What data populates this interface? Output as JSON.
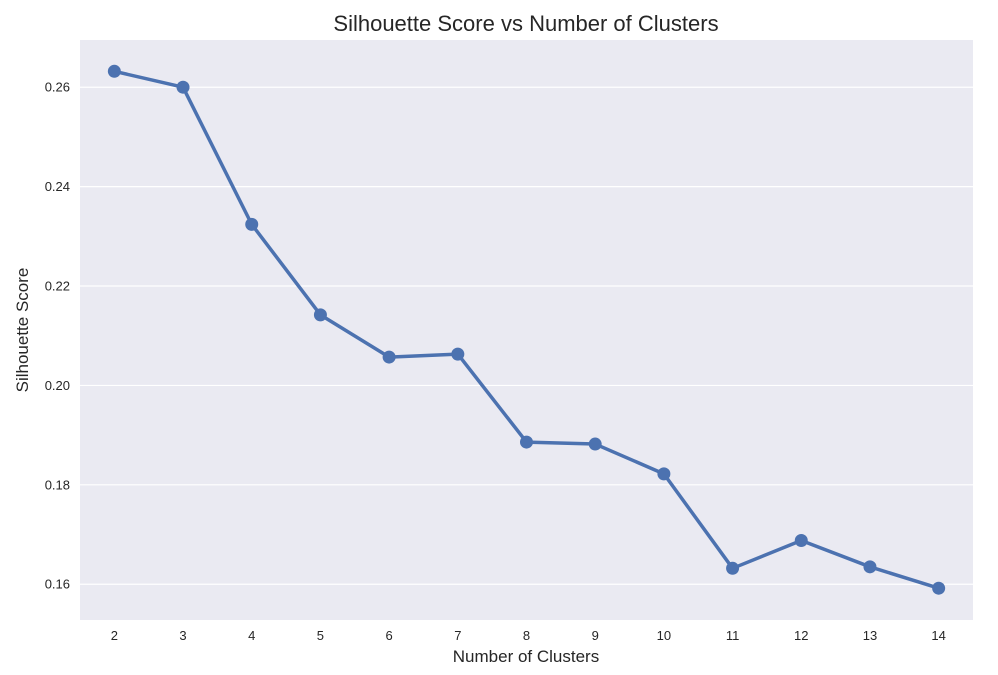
{
  "chart_data": {
    "type": "line",
    "title": "Silhouette Score vs Number of Clusters",
    "xlabel": "Number of Clusters",
    "ylabel": "Silhouette Score",
    "x": [
      2,
      3,
      4,
      5,
      6,
      7,
      8,
      9,
      10,
      11,
      12,
      13,
      14
    ],
    "y": [
      0.2632,
      0.26,
      0.2324,
      0.2142,
      0.2057,
      0.2063,
      0.1886,
      0.1882,
      0.1822,
      0.1632,
      0.1688,
      0.1635,
      0.1592
    ],
    "y_ticks": [
      "0.16",
      "0.18",
      "0.20",
      "0.22",
      "0.24",
      "0.26"
    ],
    "ylim": [
      0.1528,
      0.2695
    ],
    "grid": "horizontal",
    "legend": "none",
    "colors": {
      "line": "#4c72b0",
      "plot_background": "#eaeaf2",
      "grid": "#ffffff",
      "text": "#262626"
    }
  }
}
